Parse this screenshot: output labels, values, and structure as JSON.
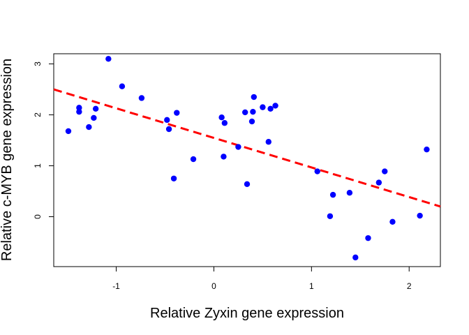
{
  "chart_data": {
    "type": "scatter",
    "title": "",
    "xlabel": "Relative Zyxin gene expression",
    "ylabel": "Relative c-MYB gene expression",
    "xlim": [
      -1.64,
      2.32
    ],
    "ylim": [
      -0.98,
      3.2
    ],
    "xticks": [
      -1,
      0,
      1,
      2
    ],
    "yticks": [
      0,
      1,
      2,
      3
    ],
    "grid": false,
    "point_color": "#0000ff",
    "line_color": "#ff0000",
    "series": [
      {
        "values": [
          {
            "x": -1.49,
            "y": 1.68
          },
          {
            "x": -1.38,
            "y": 2.06
          },
          {
            "x": -1.38,
            "y": 2.14
          },
          {
            "x": -1.28,
            "y": 1.76
          },
          {
            "x": -1.23,
            "y": 1.94
          },
          {
            "x": -1.21,
            "y": 2.12
          },
          {
            "x": -1.08,
            "y": 3.1
          },
          {
            "x": -0.94,
            "y": 2.56
          },
          {
            "x": -0.74,
            "y": 2.33
          },
          {
            "x": -0.48,
            "y": 1.9
          },
          {
            "x": -0.46,
            "y": 1.72
          },
          {
            "x": -0.41,
            "y": 0.75
          },
          {
            "x": -0.38,
            "y": 2.04
          },
          {
            "x": -0.21,
            "y": 1.13
          },
          {
            "x": 0.08,
            "y": 1.95
          },
          {
            "x": 0.1,
            "y": 1.18
          },
          {
            "x": 0.11,
            "y": 1.84
          },
          {
            "x": 0.25,
            "y": 1.37
          },
          {
            "x": 0.32,
            "y": 2.05
          },
          {
            "x": 0.34,
            "y": 0.64
          },
          {
            "x": 0.39,
            "y": 1.87
          },
          {
            "x": 0.4,
            "y": 2.06
          },
          {
            "x": 0.41,
            "y": 2.35
          },
          {
            "x": 0.5,
            "y": 2.15
          },
          {
            "x": 0.56,
            "y": 1.47
          },
          {
            "x": 0.58,
            "y": 2.12
          },
          {
            "x": 0.63,
            "y": 2.18
          },
          {
            "x": 1.06,
            "y": 0.89
          },
          {
            "x": 1.19,
            "y": 0.01
          },
          {
            "x": 1.22,
            "y": 0.43
          },
          {
            "x": 1.39,
            "y": 0.47
          },
          {
            "x": 1.45,
            "y": -0.8
          },
          {
            "x": 1.58,
            "y": -0.42
          },
          {
            "x": 1.69,
            "y": 0.67
          },
          {
            "x": 1.75,
            "y": 0.89
          },
          {
            "x": 1.83,
            "y": -0.1
          },
          {
            "x": 2.11,
            "y": 0.02
          },
          {
            "x": 2.18,
            "y": 1.32
          }
        ]
      }
    ],
    "trendline": {
      "style": "dashed",
      "from": {
        "x": -1.64,
        "y": 2.5
      },
      "to": {
        "x": 2.32,
        "y": 0.2
      }
    }
  }
}
